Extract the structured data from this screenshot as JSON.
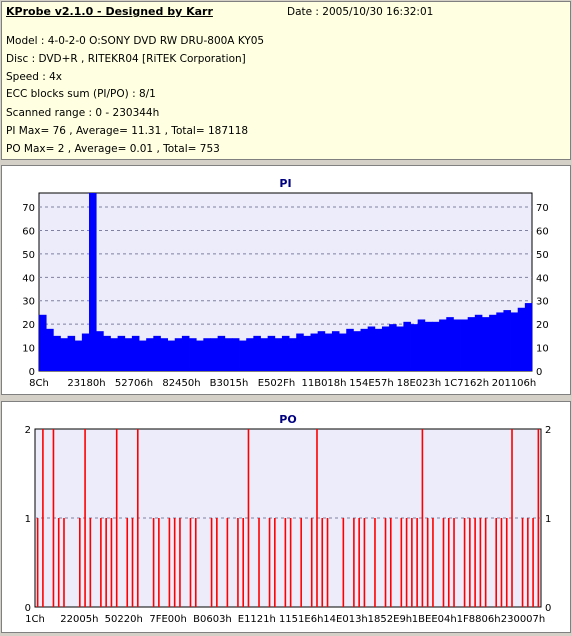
{
  "info": {
    "title": "KProbe v2.1.0 - Designed by Karr",
    "date": "Date : 2005/10/30 16:32:01",
    "model": "Model : 4-0-2-0 O:SONY    DVD RW DRU-800A  KY05",
    "disc": "Disc : DVD+R , RITEKR04 [RiTEK Corporation]",
    "speed": "Speed : 4x",
    "ecc": "ECC blocks sum (PI/PO) : 8/1",
    "range": "Scanned range : 0 - 230344h",
    "pi_summary": "PI Max= 76 , Average= 11.31 , Total= 187118",
    "po_summary": "PO Max= 2 , Average= 0.01 , Total= 753"
  },
  "chart_data": [
    {
      "type": "bar",
      "title": "PI",
      "ylim": [
        0,
        76
      ],
      "yticks": [
        0,
        10,
        20,
        30,
        40,
        50,
        60,
        70
      ],
      "xticks": [
        "8Ch",
        "23180h",
        "52706h",
        "82450h",
        "B3015h",
        "E502Fh",
        "11B018h",
        "154E57h",
        "18E023h",
        "1C7162h",
        "201106h"
      ],
      "grid": true,
      "color": "#0000ff",
      "series": [
        {
          "values": [
            24,
            18,
            15,
            14,
            15,
            13,
            16,
            76,
            17,
            15,
            14,
            15,
            14,
            15,
            13,
            14,
            15,
            14,
            13,
            14,
            15,
            14,
            13,
            14,
            14,
            15,
            14,
            14,
            13,
            14,
            15,
            14,
            15,
            14,
            15,
            14,
            16,
            15,
            16,
            17,
            16,
            17,
            16,
            18,
            17,
            18,
            19,
            18,
            19,
            20,
            19,
            21,
            20,
            22,
            21,
            21,
            22,
            23,
            22,
            22,
            23,
            24,
            23,
            24,
            25,
            26,
            25,
            27,
            29
          ]
        }
      ]
    },
    {
      "type": "bar",
      "title": "PO",
      "ylim": [
        0,
        2
      ],
      "yticks": [
        0,
        1,
        2
      ],
      "xticks": [
        "1Ch",
        "22005h",
        "50220h",
        "7FE00h",
        "B0603h",
        "E1121h",
        "1151E6h",
        "14E013h",
        "1852E9h",
        "1BEE04h",
        "1F8806h",
        "230007h"
      ],
      "grid": true,
      "color": "#ff0000",
      "series": [
        {
          "values": [
            1,
            2,
            0,
            2,
            1,
            1,
            0,
            0,
            1,
            2,
            1,
            0,
            1,
            1,
            1,
            2,
            0,
            1,
            1,
            2,
            0,
            0,
            1,
            1,
            0,
            1,
            1,
            1,
            0,
            1,
            1,
            0,
            0,
            1,
            1,
            0,
            1,
            0,
            1,
            1,
            2,
            0,
            1,
            0,
            1,
            1,
            0,
            1,
            1,
            0,
            1,
            0,
            1,
            2,
            1,
            1,
            0,
            0,
            1,
            0,
            1,
            1,
            1,
            0,
            1,
            0,
            1,
            1,
            0,
            1,
            1,
            1,
            1,
            2,
            1,
            1,
            0,
            1,
            1,
            1,
            0,
            1,
            1,
            1,
            1,
            1,
            0,
            1,
            1,
            1,
            2,
            0,
            1,
            1,
            1,
            2
          ]
        }
      ]
    }
  ]
}
